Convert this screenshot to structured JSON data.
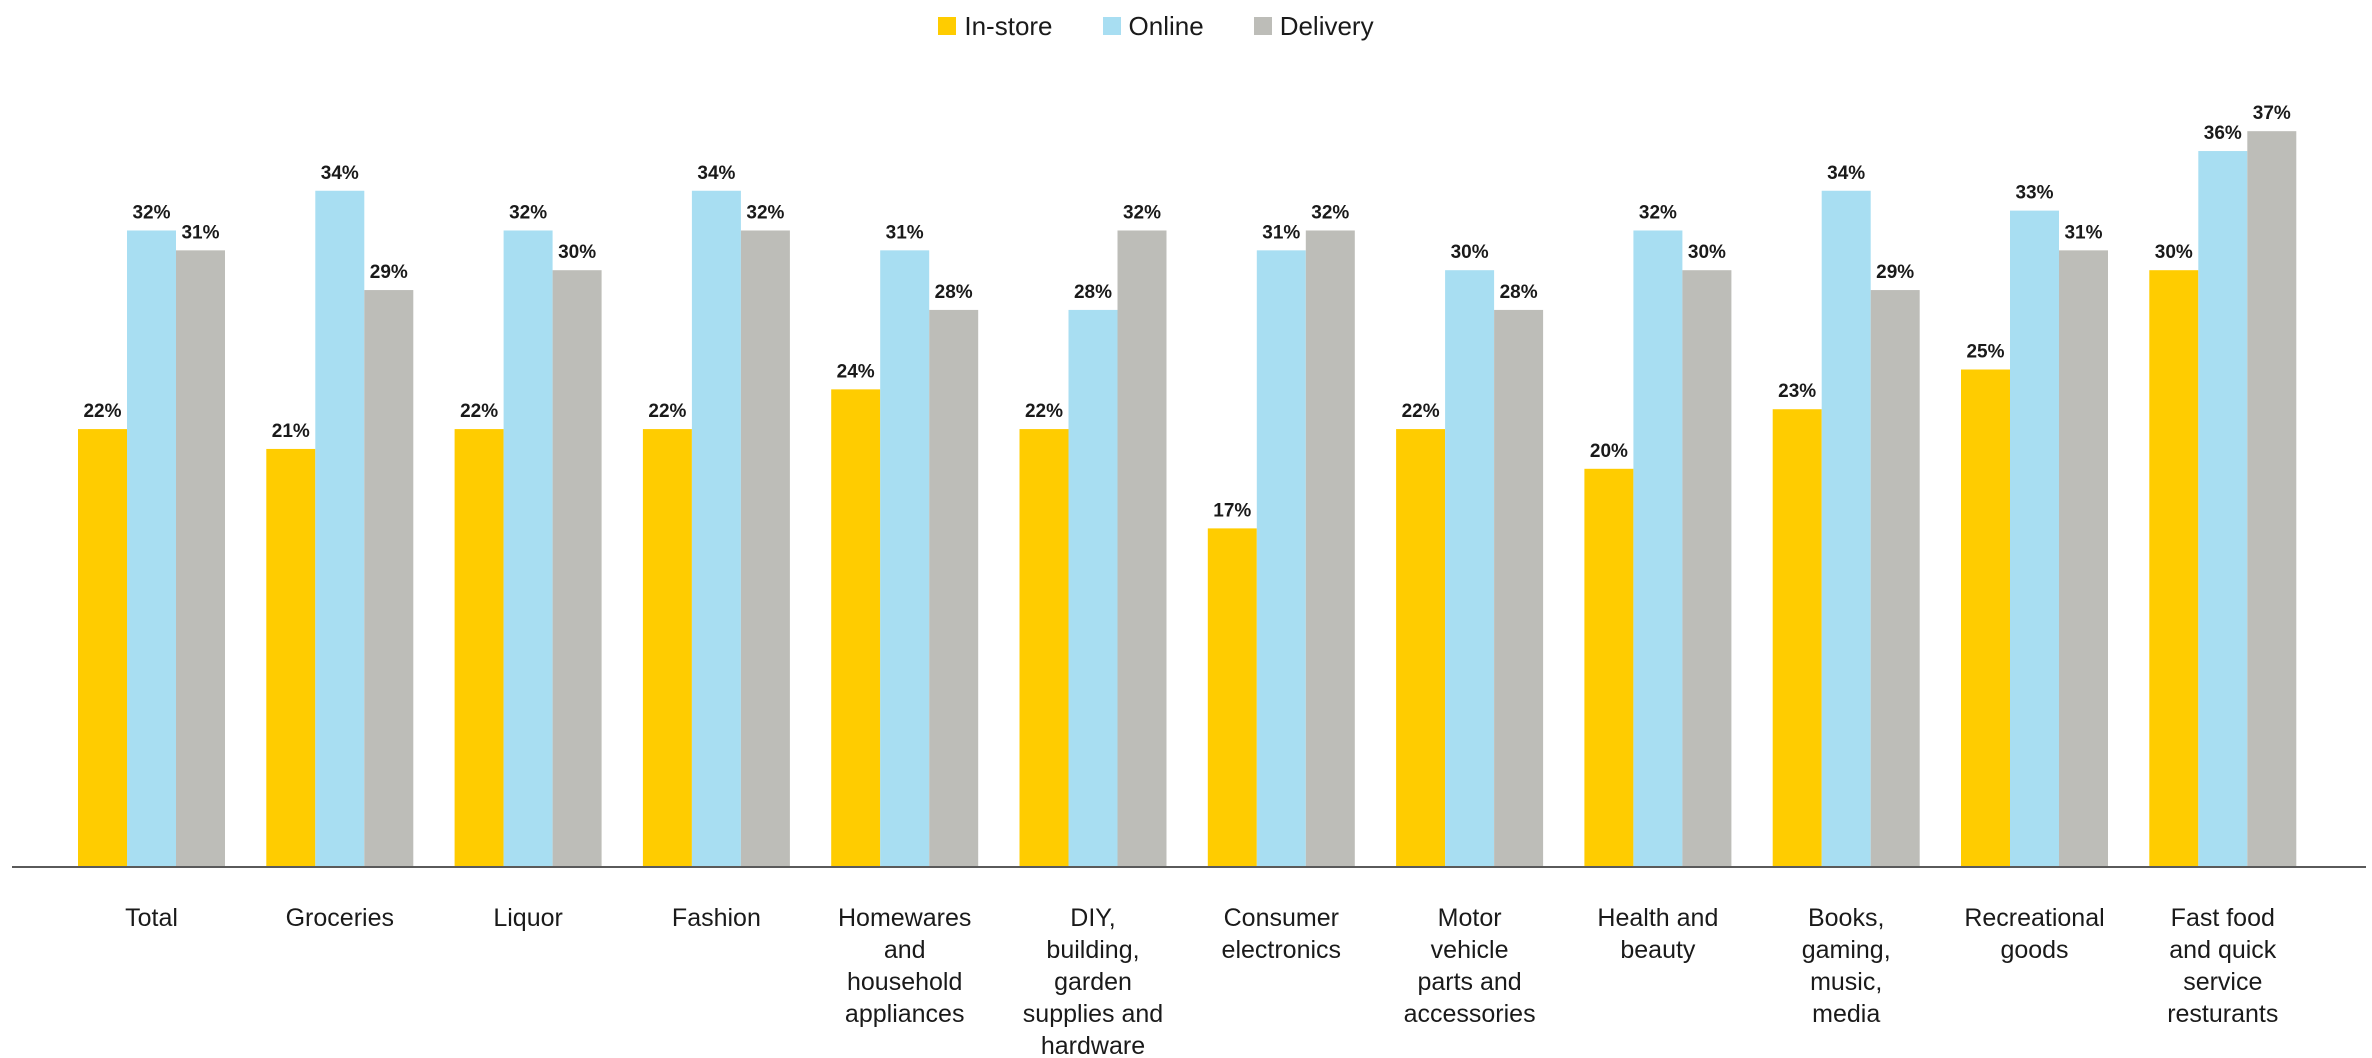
{
  "chart_data": {
    "type": "bar",
    "title": "",
    "xlabel": "",
    "ylabel": "",
    "ylim": [
      0,
      37
    ],
    "grid": false,
    "legend_position": "top-center",
    "categories": [
      [
        "Total"
      ],
      [
        "Groceries"
      ],
      [
        "Liquor"
      ],
      [
        "Fashion"
      ],
      [
        "Homewares",
        "and",
        "household",
        "appliances"
      ],
      [
        "DIY,",
        "building,",
        "garden",
        "supplies and",
        "hardware"
      ],
      [
        "Consumer",
        "electronics"
      ],
      [
        "Motor",
        "vehicle",
        "parts and",
        "accessories"
      ],
      [
        "Health and",
        "beauty"
      ],
      [
        "Books,",
        "gaming,",
        "music,",
        "media"
      ],
      [
        "Recreational",
        "goods"
      ],
      [
        "Fast food",
        "and quick",
        "service",
        "resturants"
      ]
    ],
    "series": [
      {
        "name": "In-store",
        "color": "#FFCC00",
        "values": [
          22,
          21,
          22,
          22,
          24,
          22,
          17,
          22,
          20,
          23,
          25,
          30
        ],
        "labels": [
          "22%",
          "21%",
          "22%",
          "22%",
          "24%",
          "22%",
          "17%",
          "22%",
          "20%",
          "23%",
          "25%",
          "30%"
        ]
      },
      {
        "name": "Online",
        "color": "#A8DEF2",
        "values": [
          32,
          34,
          32,
          34,
          31,
          28,
          31,
          30,
          32,
          34,
          33,
          36
        ],
        "labels": [
          "32%",
          "34%",
          "32%",
          "34%",
          "31%",
          "28%",
          "31%",
          "30%",
          "32%",
          "34%",
          "33%",
          "36%"
        ]
      },
      {
        "name": "Delivery",
        "color": "#BDBDB8",
        "values": [
          31,
          29,
          30,
          32,
          28,
          32,
          32,
          28,
          30,
          29,
          31,
          37
        ],
        "labels": [
          "31%",
          "29%",
          "30%",
          "32%",
          "28%",
          "32%",
          "32%",
          "28%",
          "30%",
          "29%",
          "31%",
          "37%"
        ]
      }
    ]
  }
}
